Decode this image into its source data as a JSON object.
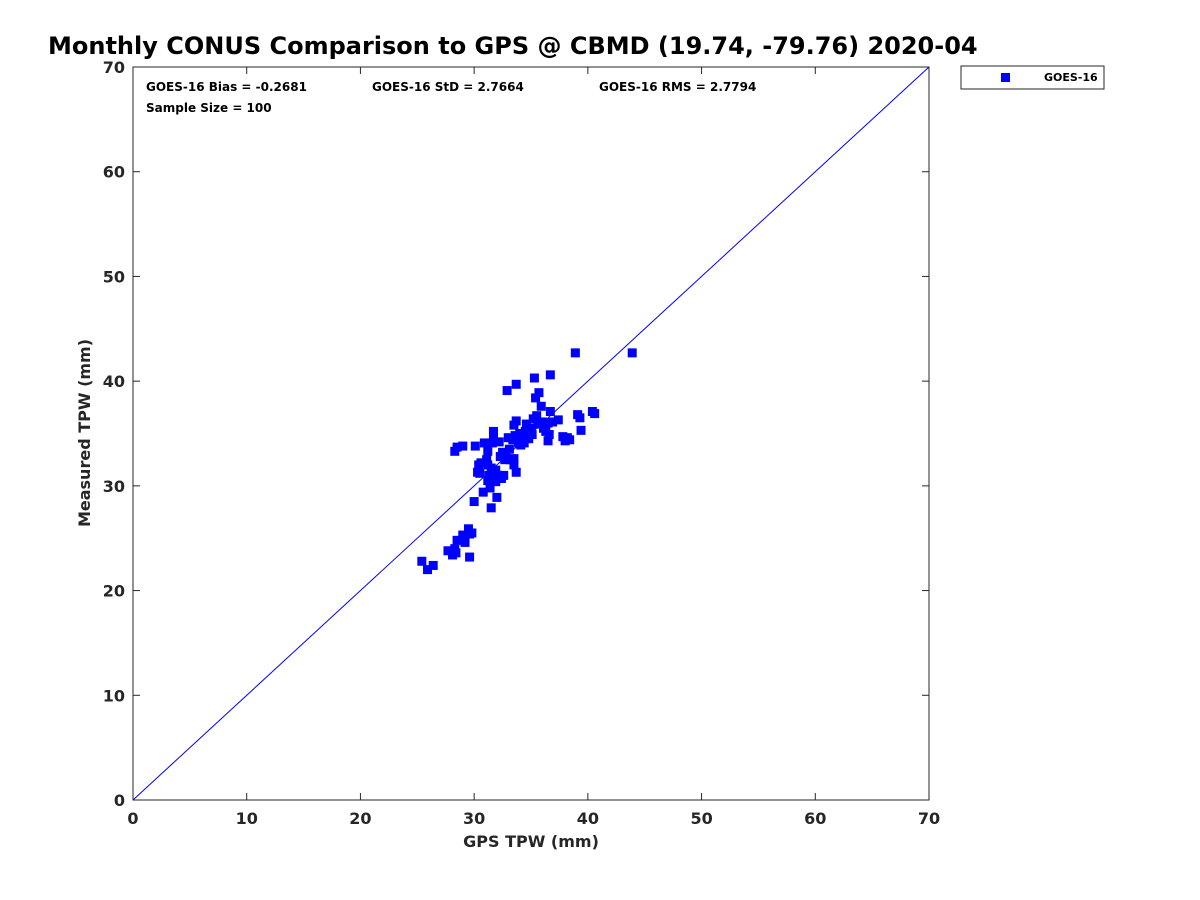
{
  "chart_data": {
    "type": "scatter",
    "title": "Monthly CONUS Comparison to GPS @ CBMD (19.74, -79.76) 2020-04",
    "xlabel": "GPS TPW (mm)",
    "ylabel": "Measured TPW (mm)",
    "xlim": [
      0,
      70
    ],
    "ylim": [
      0,
      70
    ],
    "xticks": [
      "0",
      "10",
      "20",
      "30",
      "40",
      "50",
      "60",
      "70"
    ],
    "yticks": [
      "0",
      "10",
      "20",
      "30",
      "40",
      "50",
      "60",
      "70"
    ],
    "grid": false,
    "legend_position": "outside-top-right",
    "reference_line": {
      "x": [
        0,
        70
      ],
      "y": [
        0,
        70
      ],
      "color": "#0000ff"
    },
    "stats": {
      "bias": "GOES-16 Bias = -0.2681",
      "std": "GOES-16 StD = 2.7664",
      "rms": "GOES-16 RMS = 2.7794",
      "sample": "Sample Size = 100"
    },
    "series": [
      {
        "name": "GOES-16",
        "color": "#0000ff",
        "marker": "square",
        "points": [
          [
            25.4,
            22.8
          ],
          [
            25.9,
            22.0
          ],
          [
            26.4,
            22.4
          ],
          [
            27.7,
            23.8
          ],
          [
            28.1,
            23.4
          ],
          [
            28.3,
            24.0
          ],
          [
            28.4,
            23.6
          ],
          [
            28.5,
            24.8
          ],
          [
            29.0,
            25.3
          ],
          [
            29.2,
            24.6
          ],
          [
            29.5,
            25.9
          ],
          [
            29.6,
            25.4
          ],
          [
            29.6,
            23.2
          ],
          [
            28.3,
            33.3
          ],
          [
            28.5,
            33.7
          ],
          [
            29.0,
            33.8
          ],
          [
            30.1,
            33.8
          ],
          [
            30.0,
            28.5
          ],
          [
            30.3,
            31.3
          ],
          [
            30.4,
            32.0
          ],
          [
            30.5,
            31.2
          ],
          [
            30.8,
            29.4
          ],
          [
            30.9,
            34.1
          ],
          [
            31.1,
            32.5
          ],
          [
            31.2,
            32.0
          ],
          [
            31.2,
            33.3
          ],
          [
            31.3,
            31.0
          ],
          [
            31.4,
            29.8
          ],
          [
            31.5,
            31.7
          ],
          [
            31.5,
            27.9
          ],
          [
            31.6,
            34.1
          ],
          [
            31.7,
            35.2
          ],
          [
            31.7,
            34.9
          ],
          [
            31.8,
            30.8
          ],
          [
            31.9,
            30.4
          ],
          [
            32.0,
            28.9
          ],
          [
            32.1,
            31.0
          ],
          [
            32.3,
            32.8
          ],
          [
            32.4,
            30.7
          ],
          [
            32.5,
            33.2
          ],
          [
            32.6,
            31.0
          ],
          [
            32.7,
            32.5
          ],
          [
            32.8,
            33.0
          ],
          [
            32.9,
            39.1
          ],
          [
            33.0,
            34.6
          ],
          [
            33.2,
            32.5
          ],
          [
            33.4,
            34.4
          ],
          [
            33.5,
            32.0
          ],
          [
            33.5,
            32.6
          ],
          [
            33.5,
            35.8
          ],
          [
            33.6,
            34.8
          ],
          [
            33.7,
            36.2
          ],
          [
            33.7,
            31.3
          ],
          [
            33.7,
            39.7
          ],
          [
            33.9,
            34.1
          ],
          [
            34.0,
            35.0
          ],
          [
            34.2,
            34.5
          ],
          [
            34.4,
            34.1
          ],
          [
            34.5,
            35.2
          ],
          [
            34.6,
            35.9
          ],
          [
            34.8,
            34.5
          ],
          [
            35.0,
            35.5
          ],
          [
            35.1,
            34.9
          ],
          [
            35.2,
            36.4
          ],
          [
            35.3,
            40.3
          ],
          [
            35.4,
            38.4
          ],
          [
            35.6,
            35.9
          ],
          [
            35.7,
            38.9
          ],
          [
            35.9,
            37.6
          ],
          [
            36.0,
            36.1
          ],
          [
            36.1,
            35.5
          ],
          [
            36.3,
            35.2
          ],
          [
            36.5,
            36.0
          ],
          [
            36.5,
            34.3
          ],
          [
            36.6,
            34.9
          ],
          [
            36.7,
            40.6
          ],
          [
            36.7,
            37.1
          ],
          [
            36.9,
            36.1
          ],
          [
            37.4,
            36.3
          ],
          [
            37.8,
            34.7
          ],
          [
            38.0,
            34.3
          ],
          [
            38.2,
            34.6
          ],
          [
            38.4,
            34.4
          ],
          [
            38.9,
            42.7
          ],
          [
            39.1,
            36.8
          ],
          [
            39.3,
            36.5
          ],
          [
            39.4,
            35.3
          ],
          [
            40.4,
            37.1
          ],
          [
            40.6,
            36.9
          ],
          [
            43.9,
            42.7
          ],
          [
            31.2,
            30.5
          ],
          [
            32.2,
            34.2
          ],
          [
            33.1,
            33.5
          ],
          [
            34.3,
            34.8
          ],
          [
            35.5,
            36.7
          ],
          [
            29.8,
            25.5
          ],
          [
            30.6,
            32.2
          ],
          [
            34.1,
            33.9
          ],
          [
            36.2,
            36.0
          ],
          [
            31.9,
            31.5
          ]
        ]
      }
    ]
  }
}
